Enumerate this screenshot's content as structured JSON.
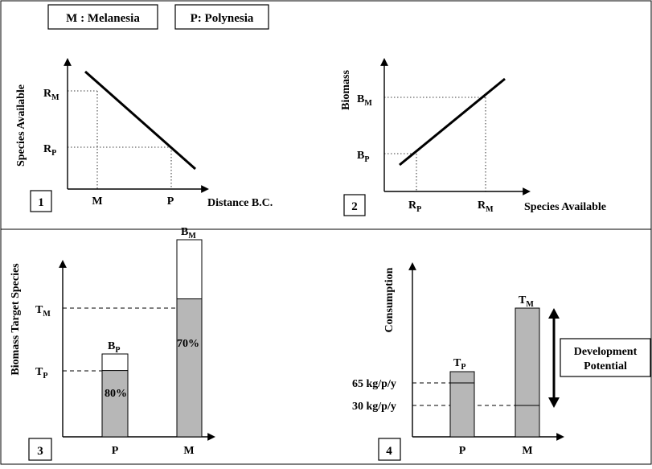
{
  "legend": {
    "melanesia": "M : Melanesia",
    "polynesia": "P: Polynesia"
  },
  "panel1": {
    "number": "1",
    "y_axis_label": "Species Available",
    "x_axis_label": "Distance B.C.",
    "x_ticks": {
      "m": "M",
      "p": "P"
    },
    "y_ticks": {
      "rm_main": "R",
      "rm_sub": "M",
      "rp_main": "R",
      "rp_sub": "P"
    }
  },
  "panel2": {
    "number": "2",
    "y_axis_label": "Biomass",
    "x_axis_label": "Species Available",
    "x_ticks": {
      "rp_main": "R",
      "rp_sub": "P",
      "rm_main": "R",
      "rm_sub": "M"
    },
    "y_ticks": {
      "bm_main": "B",
      "bm_sub": "M",
      "bp_main": "B",
      "bp_sub": "P"
    }
  },
  "panel3": {
    "number": "3",
    "y_axis_label": "Biomass Target Species",
    "categories": [
      "P",
      "M"
    ],
    "y_ticks": {
      "tm_main": "T",
      "tm_sub": "M",
      "tp_main": "T",
      "tp_sub": "P"
    },
    "bar_labels": {
      "p_top_main": "B",
      "p_top_sub": "P",
      "m_top_main": "B",
      "m_top_sub": "M"
    },
    "percent_labels": {
      "p": "80%",
      "m": "70%"
    },
    "fill_fraction": {
      "p": 0.8,
      "m": 0.7
    }
  },
  "panel4": {
    "number": "4",
    "y_axis_label": "Consumption",
    "categories": [
      "P",
      "M"
    ],
    "y_ticks": {
      "high": "65 kg/p/y",
      "low": "30 kg/p/y"
    },
    "bar_labels": {
      "p_top_main": "T",
      "p_top_sub": "P",
      "m_top_main": "T",
      "m_top_sub": "M"
    },
    "annotation_line1": "Development",
    "annotation_line2": "Potential"
  }
}
